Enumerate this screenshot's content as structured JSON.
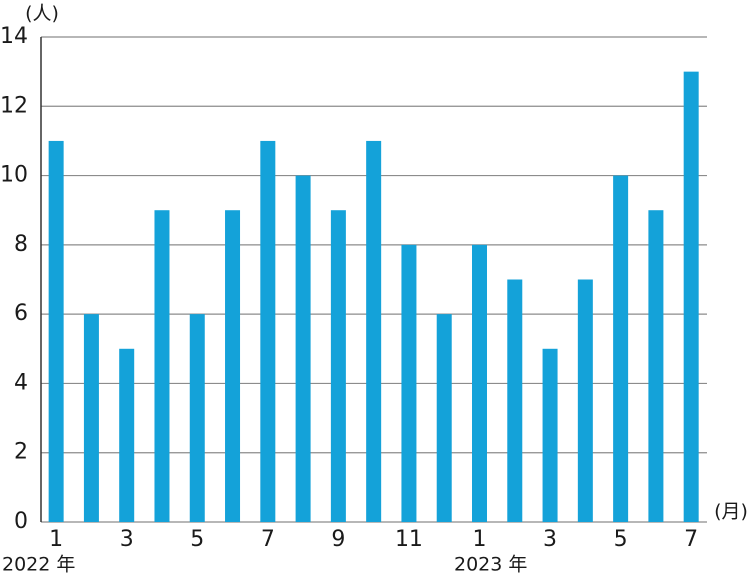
{
  "chart_data": {
    "type": "bar",
    "y_unit": "(人)",
    "x_unit": "(月)",
    "year_labels": [
      "2022 年",
      "2023 年"
    ],
    "categories": [
      "1",
      null,
      "3",
      null,
      "5",
      null,
      "7",
      null,
      "9",
      null,
      "11",
      null,
      "1",
      null,
      "3",
      null,
      "5",
      null,
      "7"
    ],
    "values": [
      11,
      6,
      5,
      9,
      6,
      9,
      11,
      10,
      9,
      11,
      8,
      6,
      8,
      7,
      5,
      7,
      10,
      9,
      13
    ],
    "color": "#14a2d9",
    "ylim": [
      0,
      14
    ],
    "yticks": [
      0,
      2,
      4,
      6,
      8,
      10,
      12,
      14
    ],
    "grid": true
  }
}
